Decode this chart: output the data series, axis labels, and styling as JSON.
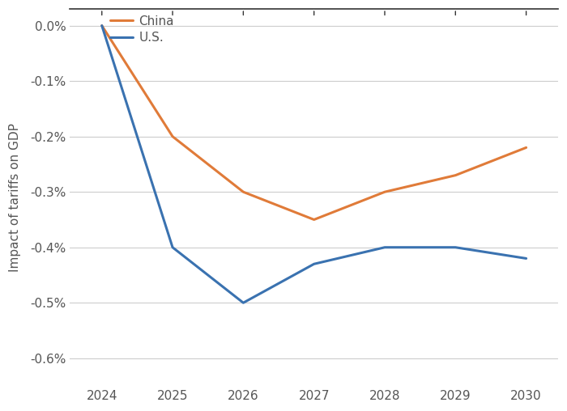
{
  "years": [
    2024,
    2025,
    2026,
    2027,
    2028,
    2029,
    2030
  ],
  "china": [
    0.0,
    -0.2,
    -0.3,
    -0.35,
    -0.3,
    -0.27,
    -0.22
  ],
  "us": [
    0.0,
    -0.4,
    -0.5,
    -0.43,
    -0.4,
    -0.4,
    -0.42
  ],
  "china_color": "#E07B39",
  "us_color": "#3A72B0",
  "china_label": "China",
  "us_label": "U.S.",
  "ylabel": "Impact of tariffs on GDP",
  "ylim": [
    -0.65,
    0.03
  ],
  "yticks": [
    0.0,
    -0.1,
    -0.2,
    -0.3,
    -0.4,
    -0.5,
    -0.6
  ],
  "ytick_labels": [
    "0.0%",
    "-0.1%",
    "-0.2%",
    "-0.3%",
    "-0.4%",
    "-0.5%",
    "-0.6%"
  ],
  "line_width": 2.2,
  "background_color": "#ffffff",
  "grid_color": "#cccccc",
  "tick_color": "#555555",
  "spine_color": "#333333",
  "legend_fontsize": 11,
  "tick_fontsize": 11,
  "ylabel_fontsize": 11
}
